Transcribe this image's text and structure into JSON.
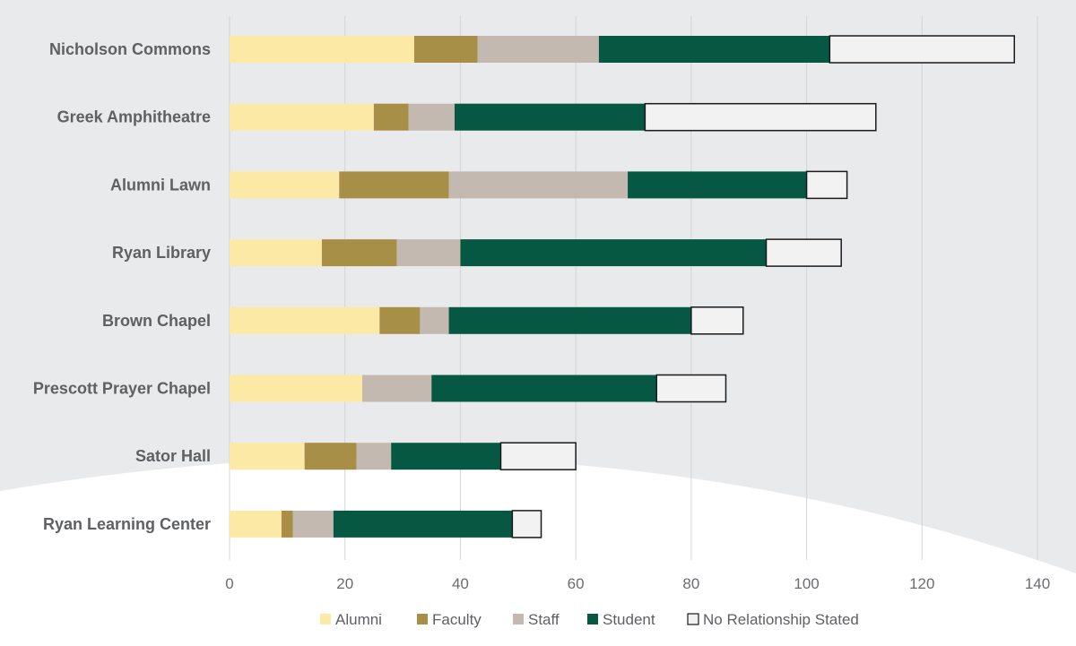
{
  "chart_data": {
    "type": "bar",
    "orientation": "horizontal",
    "stacked": true,
    "categories": [
      "Nicholson Commons",
      "Greek Amphitheatre",
      "Alumni Lawn",
      "Ryan Library",
      "Brown Chapel",
      "Prescott Prayer Chapel",
      "Sator Hall",
      "Ryan Learning Center"
    ],
    "series": [
      {
        "name": "Alumni",
        "color": "#fde9a6",
        "values": [
          32,
          25,
          19,
          16,
          26,
          23,
          13,
          9
        ]
      },
      {
        "name": "Faculty",
        "color": "#a88f47",
        "values": [
          11,
          6,
          19,
          13,
          7,
          0,
          9,
          2
        ]
      },
      {
        "name": "Staff",
        "color": "#c3b9b0",
        "values": [
          21,
          8,
          31,
          11,
          5,
          12,
          6,
          7
        ]
      },
      {
        "name": "Student",
        "color": "#075842",
        "values": [
          40,
          33,
          31,
          53,
          42,
          39,
          19,
          31
        ]
      },
      {
        "name": "No Relationship Stated",
        "color": "#f2f2f2",
        "outline": "#1a1a1a",
        "values": [
          32,
          40,
          7,
          13,
          9,
          12,
          13,
          5
        ]
      }
    ],
    "xlim": [
      0,
      140
    ],
    "xticks": [
      0,
      20,
      40,
      60,
      80,
      100,
      120,
      140
    ],
    "grid": "vertical",
    "legend": "bottom",
    "title": "",
    "xlabel": "",
    "ylabel": ""
  }
}
